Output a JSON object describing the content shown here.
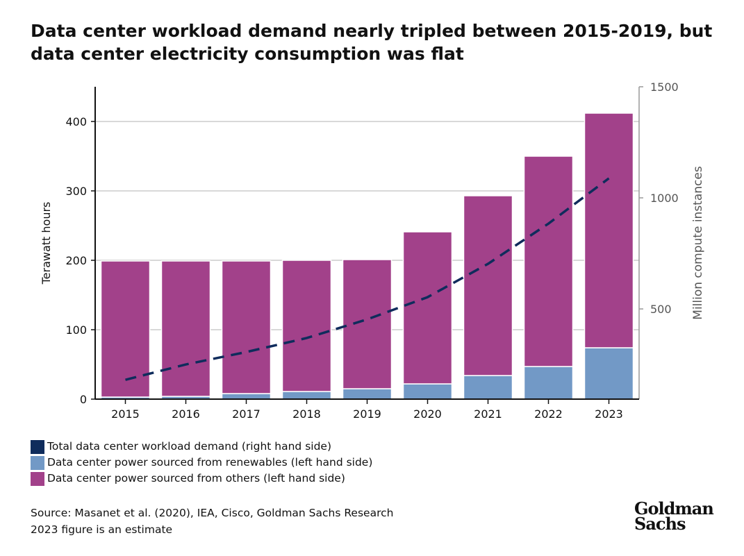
{
  "title": "Data center workload demand nearly tripled between 2015-2019, but data center electricity consumption was flat",
  "chart_data": {
    "type": "bar",
    "stacked": true,
    "categories": [
      "2015",
      "2016",
      "2017",
      "2018",
      "2019",
      "2020",
      "2021",
      "2022",
      "2023"
    ],
    "series": [
      {
        "name": "Data center power sourced from renewables (left hand side)",
        "axis": "left",
        "color": "#7299c6",
        "values": [
          3,
          4,
          8,
          11,
          15,
          22,
          34,
          47,
          74
        ]
      },
      {
        "name": "Data center power sourced from others (left hand side)",
        "axis": "left",
        "color": "#a2418a",
        "values": [
          196,
          195,
          191,
          189,
          186,
          219,
          259,
          303,
          338
        ]
      },
      {
        "name": "Total data center workload demand (right hand side)",
        "axis": "right",
        "type": "line",
        "style": "dashed",
        "color": "#0f2c5c",
        "values": [
          181,
          250,
          306,
          369,
          453,
          553,
          703,
          884,
          1088
        ]
      }
    ],
    "ylabel": "Terawatt hours",
    "ylabel_right": "Million compute instances",
    "ylim": [
      0,
      450
    ],
    "ylim_right": [
      94,
      1500
    ],
    "yticks": [
      0,
      100,
      200,
      300,
      400
    ],
    "yticks_right": [
      500,
      1000,
      1500
    ],
    "grid": true,
    "legend_position": "bottom-left"
  },
  "legend": [
    {
      "label": "Total data center workload demand (right hand side)",
      "color": "#0f2c5c"
    },
    {
      "label": "Data center power sourced from renewables (left hand side)",
      "color": "#7299c6"
    },
    {
      "label": "Data center power sourced from others (left hand side)",
      "color": "#a2418a"
    }
  ],
  "source": "Source: Masanet et al. (2020), IEA, Cisco, Goldman Sachs Research",
  "note": "2023 figure is an estimate",
  "logo": "Goldman Sachs"
}
